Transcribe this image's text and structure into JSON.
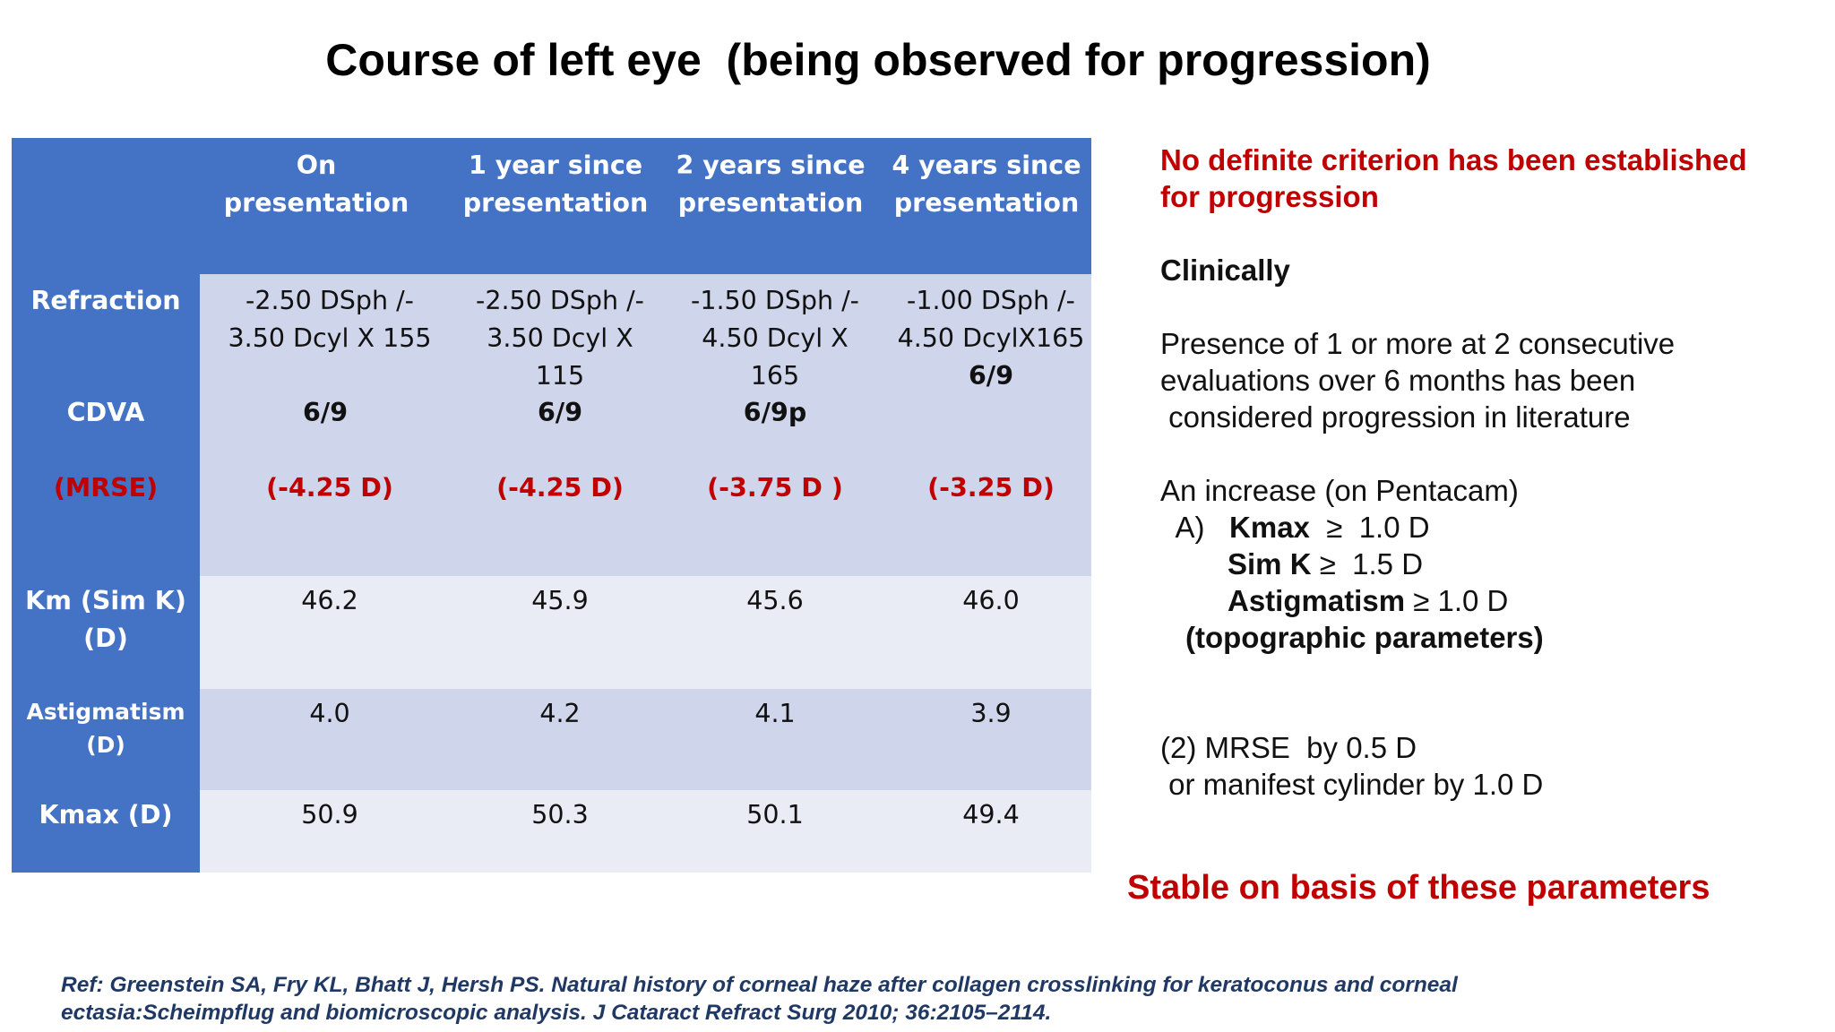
{
  "title": "Course of left eye  (being observed for progression)",
  "table": {
    "headers": [
      [
        "On presentation"
      ],
      [
        "1 year since",
        "presentation"
      ],
      [
        "2 years since",
        "presentation"
      ],
      [
        "4 years since",
        "presentation"
      ]
    ],
    "row_labels": {
      "refraction": "Refraction",
      "cdva": "CDVA",
      "mrse": "(MRSE)",
      "km": [
        "Km (Sim K)",
        "(D)"
      ],
      "astig": [
        "Astigmatism",
        "(D)"
      ],
      "kmax": "Kmax (D)"
    },
    "refraction": [
      [
        "-2.50 DSph /-",
        "3.50 Dcyl X 155"
      ],
      [
        "-2.50 DSph /-",
        "3.50 Dcyl X",
        "115"
      ],
      [
        "-1.50 DSph /-",
        "4.50 Dcyl X",
        "165"
      ],
      [
        "-1.00 DSph /-",
        "4.50 DcylX165"
      ]
    ],
    "cdva": [
      "6/9",
      "6/9",
      "6/9p",
      "6/9"
    ],
    "mrse": [
      "(-4.25 D)",
      "(-4.25 D)",
      "(-3.75 D )",
      "(-3.25 D)"
    ],
    "km": [
      "46.2",
      "45.9",
      "45.6",
      "46.0"
    ],
    "astigmatism": [
      "4.0",
      "4.2",
      "4.1",
      "3.9"
    ],
    "kmax": [
      "50.9",
      "50.3",
      "50.1",
      "49.4"
    ]
  },
  "notes": {
    "criterion_1": "No definite criterion has been established",
    "criterion_2": "for progression",
    "clinically": "Clinically",
    "presence_1": "Presence of 1 or more at 2 consecutive",
    "presence_2": "evaluations over 6 months has been",
    "presence_3": " considered progression in literature",
    "increase": "An increase (on Pentacam)",
    "a_prefix": "  A)   ",
    "kmax_label": "Kmax",
    "kmax_value": "  ≥  1.0 D",
    "simk_label": "Sim K",
    "simk_value": " ≥  1.5 D",
    "astig_label": "Astigmatism",
    "astig_value": " ≥ 1.0 D",
    "topo": "(topographic parameters)",
    "mrse_line": "(2) MRSE  by 0.5 D",
    "cyl_line": " or manifest cylinder by 1.0 D"
  },
  "stable": "Stable on basis of these parameters",
  "reference": {
    "line1": "Ref: Greenstein SA, Fry KL, Bhatt J, Hersh PS. Natural history of corneal haze after collagen crosslinking for keratoconus and corneal",
    "line2": "ectasia:Scheimpflug and biomicroscopic analysis. J Cataract Refract Surg 2010; 36:2105–2114."
  },
  "colors": {
    "header_blue": "#4472c4",
    "band_dark": "#cfd5ea",
    "band_light": "#e9ebf5",
    "accent_red": "#c00000",
    "ref_navy": "#1f3864"
  }
}
